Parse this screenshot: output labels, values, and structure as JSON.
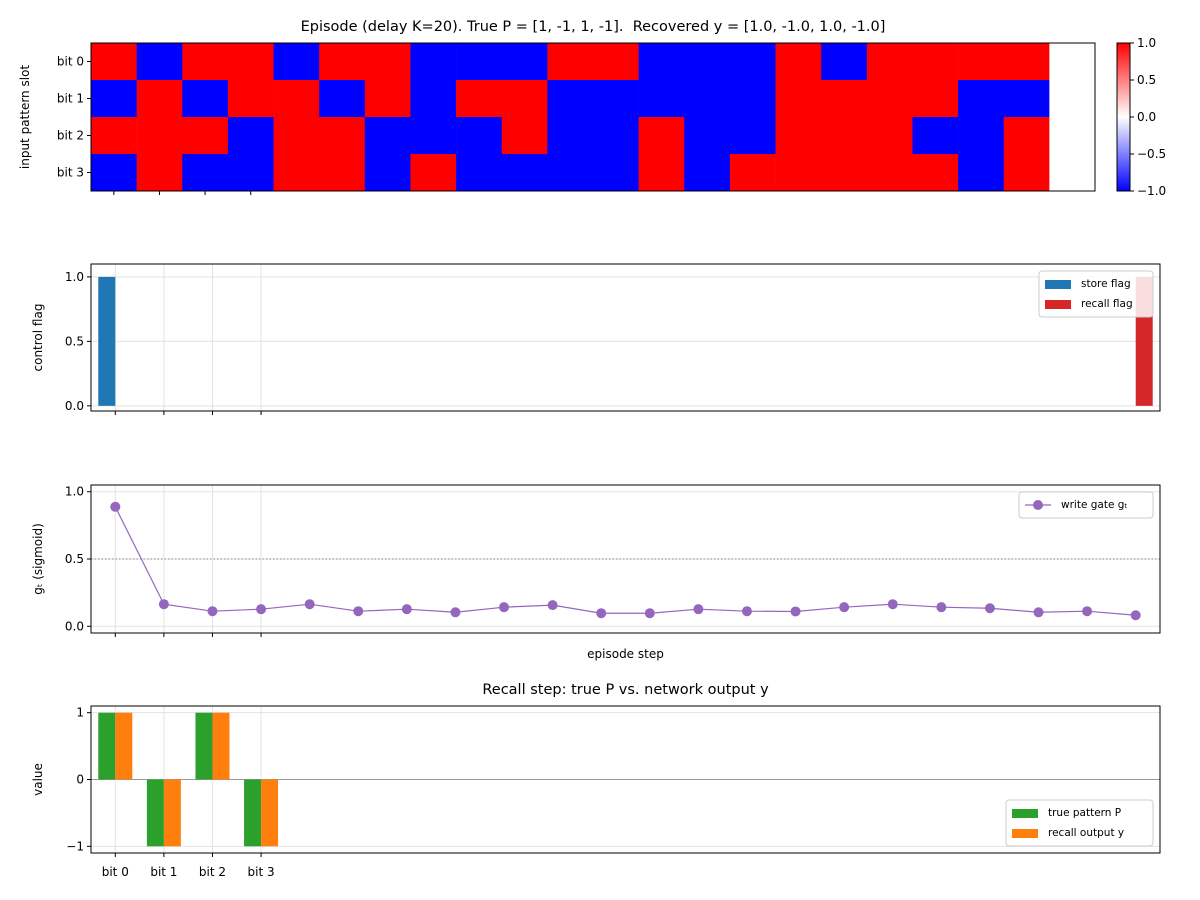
{
  "chart_data": [
    {
      "type": "heatmap",
      "title": "Episode (delay K=20). True P = [1, -1, 1, -1].  Recovered y = [1.0, -1.0, 1.0, -1.0]",
      "ylabel": "input pattern slot",
      "rows": [
        "bit 0",
        "bit 1",
        "bit 2",
        "bit 3"
      ],
      "values": [
        [
          1,
          -1,
          1,
          1,
          -1,
          1,
          1,
          -1,
          -1,
          -1,
          1,
          1,
          -1,
          -1,
          -1,
          1,
          -1,
          1,
          1,
          1,
          1,
          0
        ],
        [
          -1,
          1,
          -1,
          1,
          1,
          -1,
          1,
          -1,
          1,
          1,
          -1,
          -1,
          -1,
          -1,
          -1,
          1,
          1,
          1,
          1,
          -1,
          -1,
          0
        ],
        [
          1,
          1,
          1,
          -1,
          1,
          1,
          -1,
          -1,
          -1,
          1,
          -1,
          -1,
          1,
          -1,
          -1,
          1,
          1,
          1,
          -1,
          -1,
          1,
          0
        ],
        [
          -1,
          1,
          -1,
          -1,
          1,
          1,
          -1,
          1,
          -1,
          -1,
          -1,
          -1,
          1,
          -1,
          1,
          1,
          1,
          1,
          1,
          -1,
          1,
          0
        ]
      ],
      "xlim": [
        -0.5,
        21.5
      ],
      "xticks": [
        0,
        1,
        2,
        3
      ],
      "clim": [
        -1,
        1
      ],
      "cticks": [
        {
          "value": 1,
          "label": "1.0"
        },
        {
          "value": 0.5,
          "label": "0.5"
        },
        {
          "value": 0,
          "label": "0.0"
        },
        {
          "value": -0.5,
          "label": "−0.5"
        },
        {
          "value": -1,
          "label": "−1.0"
        }
      ]
    },
    {
      "type": "bar",
      "ylabel": "control flag",
      "x": [
        0,
        1,
        2,
        3,
        4,
        5,
        6,
        7,
        8,
        9,
        10,
        11,
        12,
        13,
        14,
        15,
        16,
        17,
        18,
        19,
        20,
        21
      ],
      "series": [
        {
          "name": "store flag",
          "color": "#1f77b4",
          "values": [
            1,
            0,
            0,
            0,
            0,
            0,
            0,
            0,
            0,
            0,
            0,
            0,
            0,
            0,
            0,
            0,
            0,
            0,
            0,
            0,
            0,
            0
          ]
        },
        {
          "name": "recall flag",
          "color": "#d62728",
          "values": [
            0,
            0,
            0,
            0,
            0,
            0,
            0,
            0,
            0,
            0,
            0,
            0,
            0,
            0,
            0,
            0,
            0,
            0,
            0,
            0,
            0,
            1
          ]
        }
      ],
      "xlim": [
        -0.5,
        21.5
      ],
      "xticks": [
        0,
        1,
        2,
        3
      ],
      "ylim": [
        -0.04,
        1.1
      ],
      "yticks": [
        {
          "value": 0,
          "label": "0.0"
        },
        {
          "value": 0.5,
          "label": "0.5"
        },
        {
          "value": 1,
          "label": "1.0"
        }
      ],
      "grid": true,
      "legend": "upper right"
    },
    {
      "type": "line",
      "ylabel": "gₜ (sigmoid)",
      "xlabel": "episode step",
      "x": [
        0,
        1,
        2,
        3,
        4,
        5,
        6,
        7,
        8,
        9,
        10,
        11,
        12,
        13,
        14,
        15,
        16,
        17,
        18,
        19,
        20,
        21
      ],
      "series": [
        {
          "name": "write gate gₜ",
          "color": "#9467bd",
          "values": [
            0.888,
            0.164,
            0.112,
            0.127,
            0.164,
            0.112,
            0.127,
            0.104,
            0.142,
            0.157,
            0.097,
            0.097,
            0.127,
            0.112,
            0.11,
            0.142,
            0.164,
            0.142,
            0.134,
            0.104,
            0.112,
            0.082
          ]
        }
      ],
      "xlim": [
        -0.5,
        21.5
      ],
      "xticks": [
        0,
        1,
        2,
        3
      ],
      "ylim": [
        -0.05,
        1.05
      ],
      "yticks": [
        {
          "value": 0,
          "label": "0.0"
        },
        {
          "value": 0.5,
          "label": "0.5"
        },
        {
          "value": 1,
          "label": "1.0"
        }
      ],
      "hline": 0.5,
      "grid": true,
      "legend": "upper right"
    },
    {
      "type": "bar",
      "title": "Recall step: true P vs. network output y",
      "ylabel": "value",
      "categories": [
        "bit 0",
        "bit 1",
        "bit 2",
        "bit 3"
      ],
      "series": [
        {
          "name": "true pattern P",
          "color": "#2ca02c",
          "values": [
            1,
            -1,
            1,
            -1
          ]
        },
        {
          "name": "recall output y",
          "color": "#ff7f0e",
          "values": [
            1,
            -1,
            1,
            -1
          ]
        }
      ],
      "xlim": [
        -0.5,
        21.5
      ],
      "ylim": [
        -1.1,
        1.1
      ],
      "yticks": [
        1,
        0,
        {
          "value": -1,
          "label": "−1"
        }
      ],
      "hline": 0,
      "grid": true,
      "legend": "lower right"
    }
  ]
}
